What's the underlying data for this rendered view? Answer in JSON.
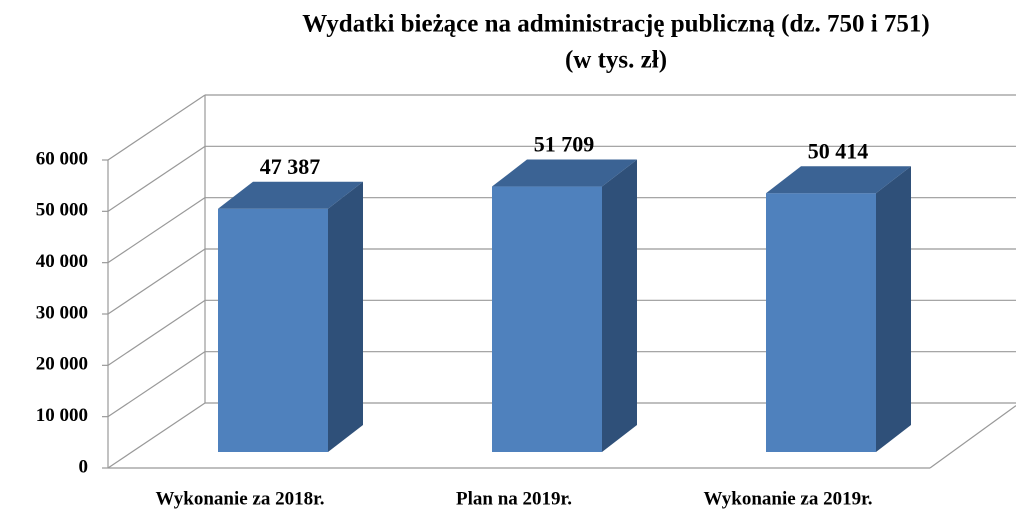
{
  "chart_data": {
    "type": "bar3d",
    "title": "Wydatki bieżące na administrację publiczną (dz. 750 i 751)",
    "subtitle": "(w tys. zł)",
    "categories": [
      "Wykonanie za 2018r.",
      "Plan na 2019r.",
      "Wykonanie za 2019r."
    ],
    "values": [
      47387,
      51709,
      50414
    ],
    "value_labels": [
      "47 387",
      "51 709",
      "50 414"
    ],
    "color": "#4f81bd",
    "ylim": [
      0,
      60000
    ],
    "yticks": [
      0,
      {
        "value": 10000,
        "label": "10 000"
      },
      {
        "value": 20000,
        "label": "20 000"
      },
      {
        "value": 30000,
        "label": "30 000"
      },
      {
        "value": 40000,
        "label": "40 000"
      },
      {
        "value": 50000,
        "label": "50 000"
      },
      {
        "value": 60000,
        "label": "60 000"
      }
    ],
    "grid": true
  }
}
